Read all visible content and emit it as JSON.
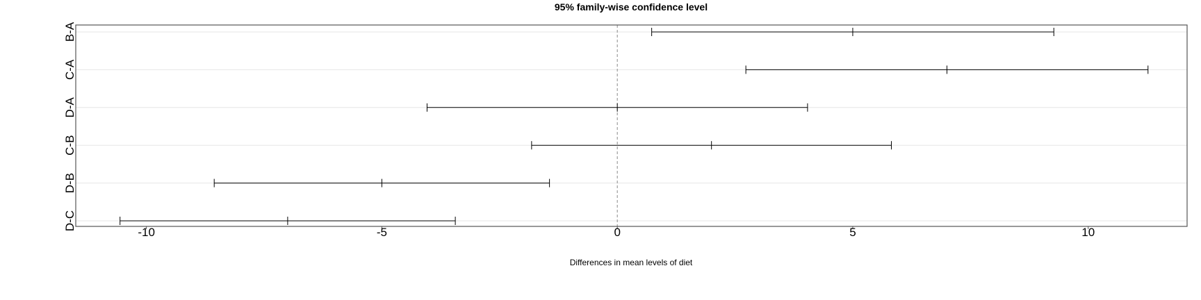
{
  "chart_data": {
    "type": "errorbar",
    "orientation": "horizontal",
    "title": "95% family-wise confidence level",
    "xlabel": "Differences in mean levels of diet",
    "ylabel": "",
    "categories": [
      "B-A",
      "C-A",
      "D-A",
      "C-B",
      "D-B",
      "D-C"
    ],
    "estimates": [
      5,
      7,
      0,
      2,
      -5,
      -7
    ],
    "lower": [
      0.73,
      2.73,
      -4.04,
      -1.82,
      -8.56,
      -10.56
    ],
    "upper": [
      9.27,
      11.27,
      4.04,
      5.82,
      -1.44,
      -3.44
    ],
    "xlim": [
      -11.5,
      12.1
    ],
    "xticks": [
      -10,
      -5,
      0,
      5,
      10
    ],
    "xtick_labels": [
      "-10",
      "-5",
      "0",
      "5",
      "10"
    ],
    "reference_line": 0,
    "grid": "horizontal",
    "legend": "none",
    "colors": {
      "interval": "#000000",
      "grid": "#e6e6e6",
      "reference": "#888888",
      "frame": "#555555"
    }
  }
}
